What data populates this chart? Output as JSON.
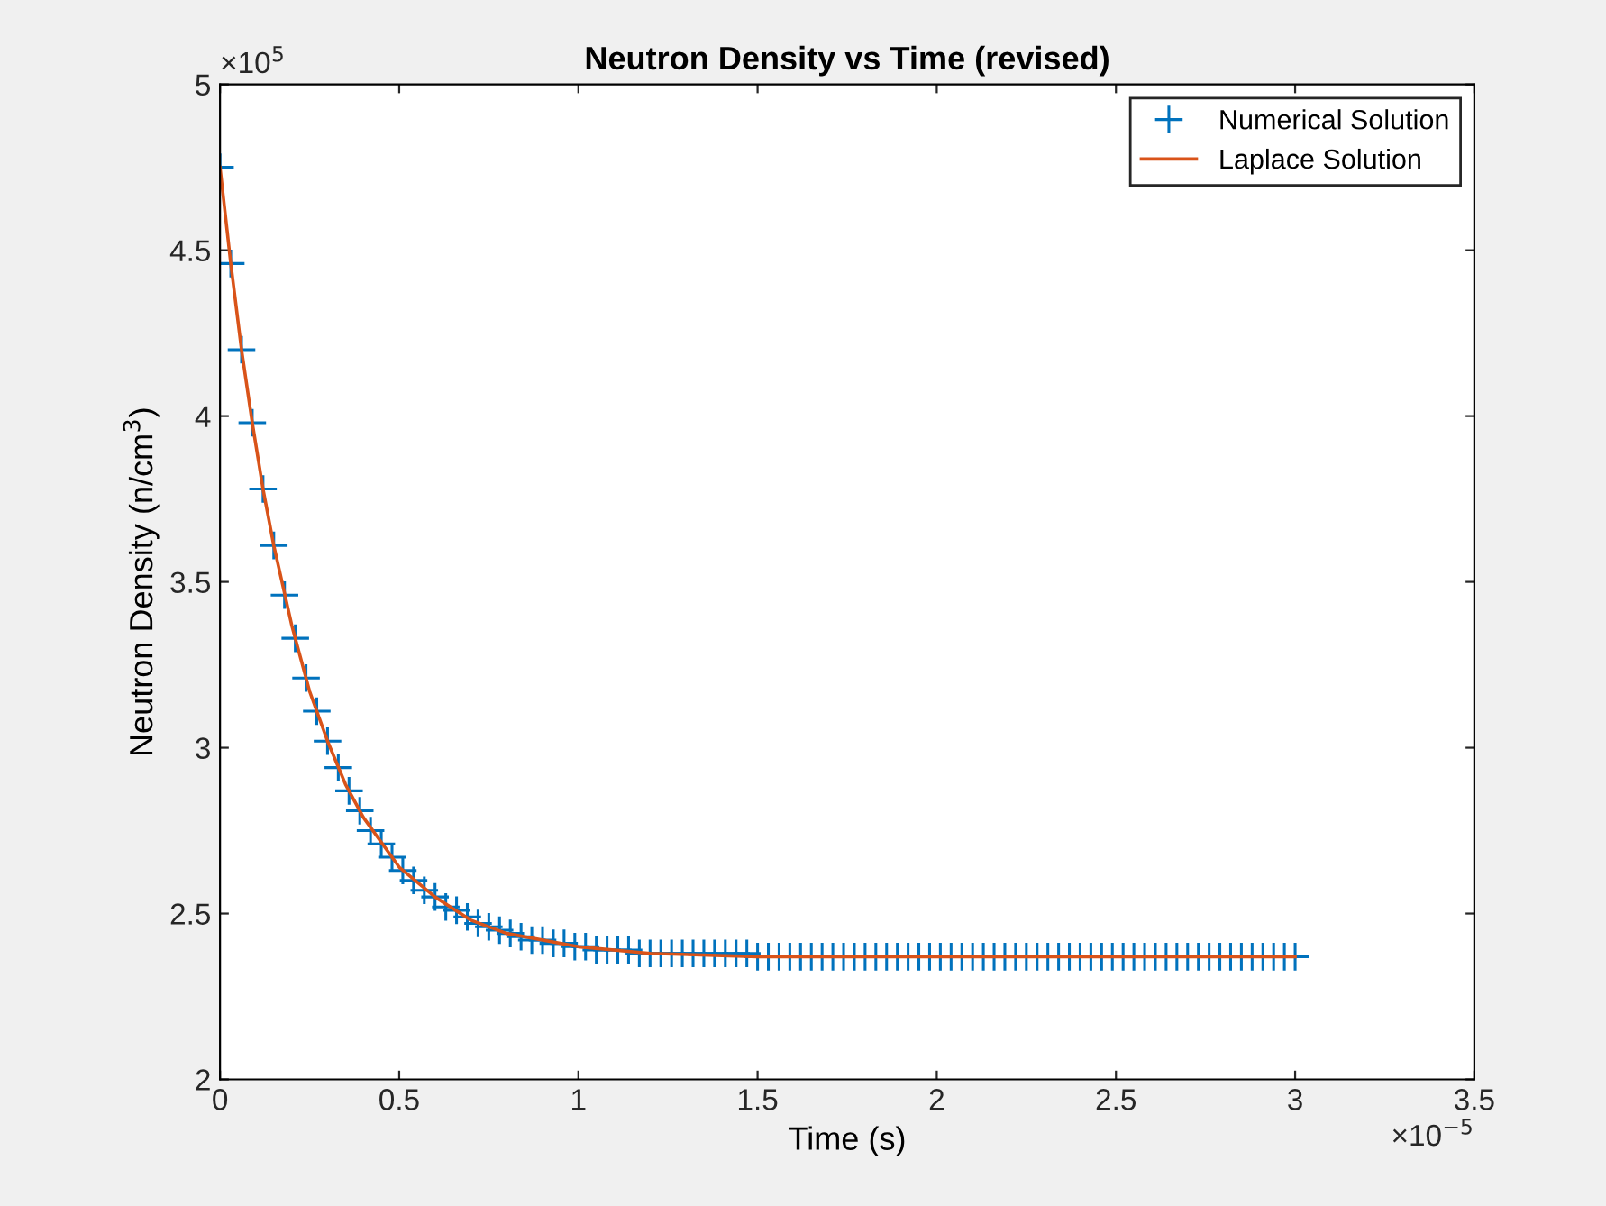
{
  "chart_data": {
    "type": "line",
    "title": "Neutron Density vs Time (revised)",
    "xlabel": "Time (s)",
    "ylabel": "Neutron Density (n/cm$^{3}$)",
    "annotations": [
      "×10$^{5}$",
      "×10$^{−5}$"
    ],
    "xlim": [
      0,
      3.5
    ],
    "xticks": [
      0,
      0.5,
      1,
      1.5,
      2,
      2.5,
      3,
      3.5
    ],
    "ylim": [
      2,
      5
    ],
    "yticks": [
      2,
      2.5,
      3,
      3.5,
      4,
      4.5,
      5
    ],
    "grid": false,
    "legend": "top right",
    "series": [
      {
        "name": "Numerical Solution",
        "type": "scatter",
        "marker": "cross",
        "color": "#0072bd",
        "x": [
          0,
          0.03,
          0.06,
          0.09,
          0.12,
          0.15,
          0.18,
          0.21,
          0.24,
          0.27,
          0.3,
          0.33,
          0.36,
          0.39,
          0.42,
          0.45,
          0.48,
          0.51,
          0.54,
          0.57,
          0.6,
          0.63,
          0.66,
          0.69,
          0.72,
          0.75,
          0.78,
          0.81,
          0.84,
          0.87,
          0.9,
          0.93,
          0.96,
          0.99,
          1.02,
          1.05,
          1.08,
          1.11,
          1.14,
          1.17,
          1.2,
          1.23,
          1.26,
          1.29,
          1.32,
          1.35,
          1.38,
          1.41,
          1.44,
          1.47,
          1.5,
          1.53,
          1.56,
          1.59,
          1.62,
          1.65,
          1.68,
          1.71,
          1.74,
          1.77,
          1.8,
          1.83,
          1.86,
          1.89,
          1.92,
          1.95,
          1.98,
          2.01,
          2.04,
          2.07,
          2.1,
          2.13,
          2.16,
          2.19,
          2.22,
          2.25,
          2.28,
          2.31,
          2.34,
          2.37,
          2.4,
          2.43,
          2.46,
          2.49,
          2.52,
          2.55,
          2.58,
          2.61,
          2.64,
          2.67,
          2.7,
          2.73,
          2.76,
          2.79,
          2.82,
          2.85,
          2.88,
          2.91,
          2.94,
          2.97,
          3.0
        ],
        "values": [
          4.75,
          4.46,
          4.2,
          3.98,
          3.78,
          3.61,
          3.46,
          3.33,
          3.21,
          3.11,
          3.02,
          2.94,
          2.87,
          2.81,
          2.75,
          2.71,
          2.67,
          2.63,
          2.6,
          2.57,
          2.55,
          2.52,
          2.51,
          2.49,
          2.47,
          2.46,
          2.45,
          2.44,
          2.43,
          2.42,
          2.42,
          2.41,
          2.41,
          2.4,
          2.4,
          2.39,
          2.39,
          2.39,
          2.39,
          2.38,
          2.38,
          2.38,
          2.38,
          2.38,
          2.38,
          2.38,
          2.38,
          2.38,
          2.38,
          2.38,
          2.37,
          2.37,
          2.37,
          2.37,
          2.37,
          2.37,
          2.37,
          2.37,
          2.37,
          2.37,
          2.37,
          2.37,
          2.37,
          2.37,
          2.37,
          2.37,
          2.37,
          2.37,
          2.37,
          2.37,
          2.37,
          2.37,
          2.37,
          2.37,
          2.37,
          2.37,
          2.37,
          2.37,
          2.37,
          2.37,
          2.37,
          2.37,
          2.37,
          2.37,
          2.37,
          2.37,
          2.37,
          2.37,
          2.37,
          2.37,
          2.37,
          2.37,
          2.37,
          2.37,
          2.37,
          2.37,
          2.37,
          2.37,
          2.37,
          2.37,
          2.37
        ]
      },
      {
        "name": "Laplace Solution",
        "line_style": "solid",
        "color": "#d95319",
        "x": [
          0,
          0.03,
          0.06,
          0.09,
          0.12,
          0.15,
          0.2,
          0.25,
          0.3,
          0.35,
          0.4,
          0.5,
          0.6,
          0.7,
          0.8,
          1.0,
          1.2,
          1.5,
          2,
          3
        ],
        "values": [
          4.75,
          4.46,
          4.2,
          3.98,
          3.78,
          3.61,
          3.37,
          3.17,
          3.02,
          2.89,
          2.79,
          2.64,
          2.55,
          2.48,
          2.44,
          2.4,
          2.38,
          2.37,
          2.37,
          2.37
        ]
      }
    ]
  }
}
